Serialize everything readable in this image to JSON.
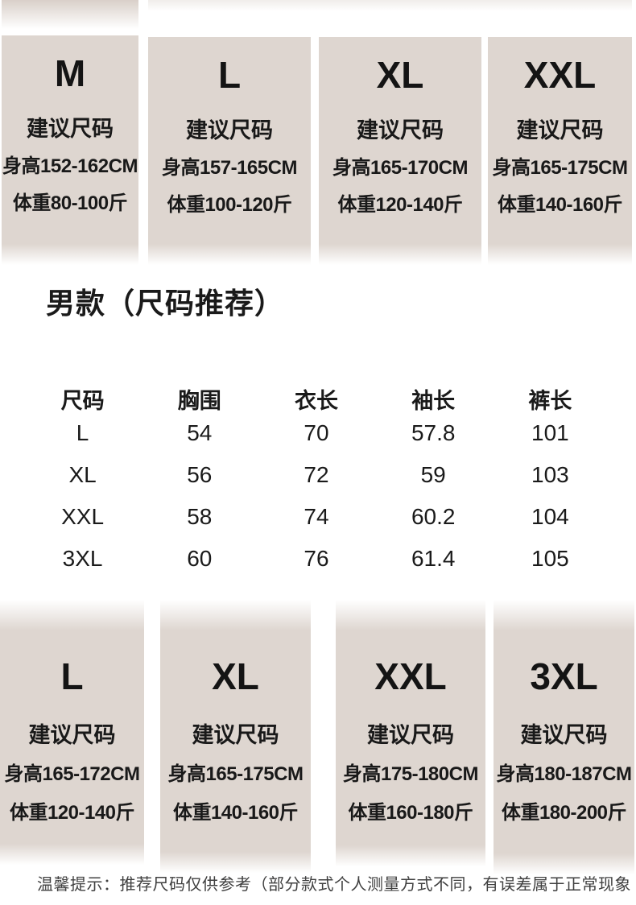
{
  "page": {
    "background_color": "#ffffff",
    "card_color": "#ded6d0",
    "text_color": "#1c1c1c"
  },
  "top_cards": [
    {
      "size": "M",
      "advice": "建议尺码",
      "height": "身高152-162CM",
      "weight": "体重80-100斤"
    },
    {
      "size": "L",
      "advice": "建议尺码",
      "height": "身高157-165CM",
      "weight": "体重100-120斤"
    },
    {
      "size": "XL",
      "advice": "建议尺码",
      "height": "身高165-170CM",
      "weight": "体重120-140斤"
    },
    {
      "size": "XXL",
      "advice": "建议尺码",
      "height": "身高165-175CM",
      "weight": "体重140-160斤"
    }
  ],
  "section": {
    "title": "男款（尺码推荐）"
  },
  "size_table": {
    "headers": [
      "尺码",
      "胸围",
      "衣长",
      "袖长",
      "裤长"
    ],
    "rows": [
      [
        "L",
        "54",
        "70",
        "57.8",
        "101"
      ],
      [
        "XL",
        "56",
        "72",
        "59",
        "103"
      ],
      [
        "XXL",
        "58",
        "74",
        "60.2",
        "104"
      ],
      [
        "3XL",
        "60",
        "76",
        "61.4",
        "105"
      ]
    ]
  },
  "bottom_cards": [
    {
      "size": "L",
      "advice": "建议尺码",
      "height": "身高165-172CM",
      "weight": "体重120-140斤"
    },
    {
      "size": "XL",
      "advice": "建议尺码",
      "height": "身高165-175CM",
      "weight": "体重140-160斤"
    },
    {
      "size": "XXL",
      "advice": "建议尺码",
      "height": "身高175-180CM",
      "weight": "体重160-180斤"
    },
    {
      "size": "3XL",
      "advice": "建议尺码",
      "height": "身高180-187CM",
      "weight": "体重180-200斤"
    }
  ],
  "footer": {
    "note": "温馨提示：推荐尺码仅供参考（部分款式个人测量方式不同，有误差属于正常现象"
  }
}
